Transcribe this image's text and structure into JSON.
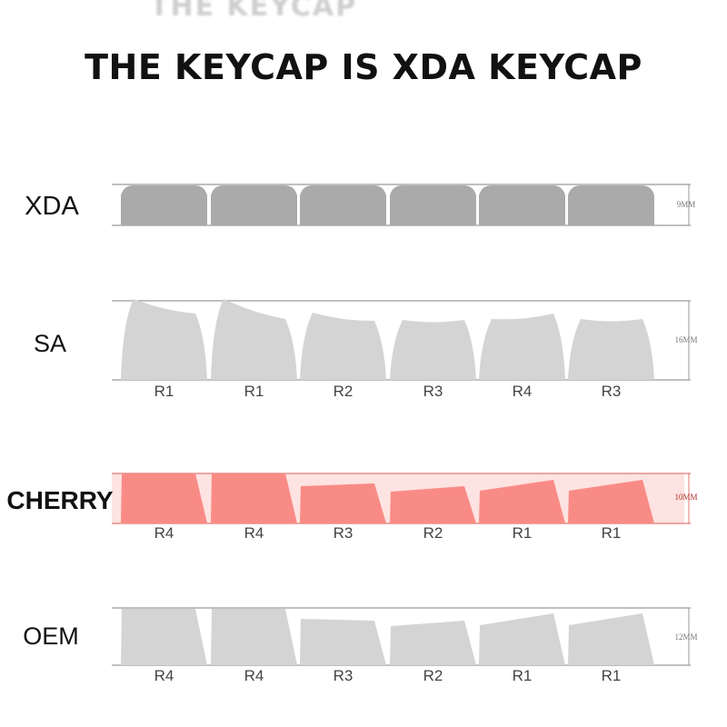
{
  "title": "THE KEYCAP IS XDA KEYCAP",
  "accent_color": "#f98b86",
  "profiles": [
    {
      "name": "XDA",
      "height_label": "9MM",
      "rows": [
        "",
        "",
        "",
        "",
        "",
        ""
      ],
      "color": "#aaaaaa",
      "highlighted": false
    },
    {
      "name": "SA",
      "height_label": "16MM",
      "rows": [
        "R1",
        "R1",
        "R2",
        "R3",
        "R4",
        "R3"
      ],
      "color": "#d4d4d4",
      "highlighted": false
    },
    {
      "name": "CHERRY",
      "height_label": "10MM",
      "rows": [
        "R4",
        "R4",
        "R3",
        "R2",
        "R1",
        "R1"
      ],
      "color": "#f98b86",
      "highlighted": true
    },
    {
      "name": "OEM",
      "height_label": "12MM",
      "rows": [
        "R4",
        "R4",
        "R3",
        "R2",
        "R1",
        "R1"
      ],
      "color": "#d4d4d4",
      "highlighted": false
    }
  ]
}
